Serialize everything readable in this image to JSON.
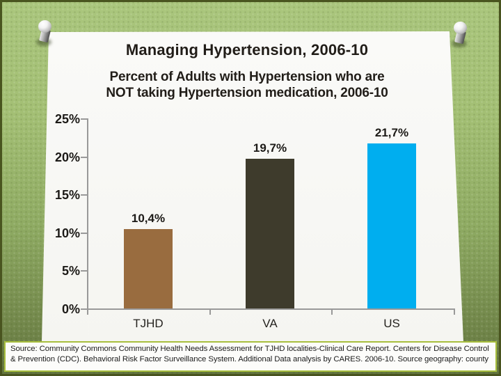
{
  "slide": {
    "title": "Managing Hypertension, 2006-10",
    "subtitle_line1": "Percent of Adults with Hypertension who are",
    "subtitle_line2": "NOT taking Hypertension medication, 2006-10",
    "source_note": "Source: Community Commons Community Health Needs Assessment for TJHD localities-Clinical Care Report. Centers for Disease Control & Prevention (CDC). Behavioral Risk Factor Surveillance System. Additional Data analysis by CARES. 2006-10. Source geography: county"
  },
  "chart_data": {
    "type": "bar",
    "title": "Percent of Adults with Hypertension who are NOT taking Hypertension medication, 2006-10",
    "categories": [
      "TJHD",
      "VA",
      "US"
    ],
    "values": [
      10.4,
      19.7,
      21.7
    ],
    "data_labels": [
      "10,4%",
      "19,7%",
      "21,7%"
    ],
    "bar_colors": [
      "#996C3F",
      "#3E3B2C",
      "#00AEEF"
    ],
    "y_tick_labels": [
      "25%",
      "20%",
      "15%",
      "10%",
      "5%",
      "0%"
    ],
    "ylim": [
      0,
      25
    ],
    "xlabel": "",
    "ylabel": "",
    "grid": false,
    "legend": false,
    "axis_color": "#999999",
    "label_color": "#1c1a17"
  },
  "theme": {
    "background_top_color": "#aac67d",
    "background_bottom_color": "#64763f",
    "paper_color": "#f7f7f4",
    "border_color": "#49541f",
    "source_border_color": "#a8bf3d"
  }
}
